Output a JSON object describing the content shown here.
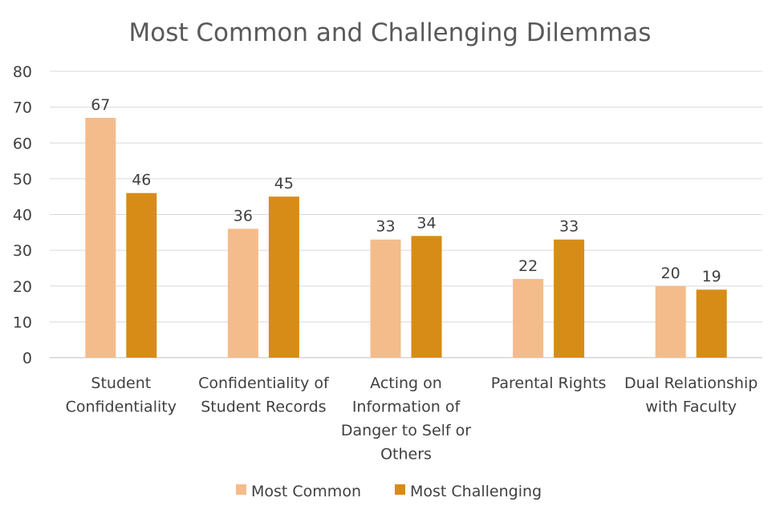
{
  "chart_data": {
    "type": "bar",
    "title": "Most Common and Challenging Dilemmas",
    "categories": [
      [
        "Student",
        "Confidentiality"
      ],
      [
        "Confidentiality of",
        "Student Records"
      ],
      [
        "Acting on",
        "Information of",
        "Danger to Self or",
        "Others"
      ],
      [
        "Parental Rights"
      ],
      [
        "Dual Relationship",
        "with Faculty"
      ]
    ],
    "series": [
      {
        "name": "Most Common",
        "color": "#f4bc8a",
        "values": [
          67,
          36,
          33,
          22,
          20
        ]
      },
      {
        "name": "Most Challenging",
        "color": "#d78c18",
        "values": [
          46,
          45,
          34,
          33,
          19
        ]
      }
    ],
    "ylim": [
      0,
      80
    ],
    "yticks": [
      0,
      10,
      20,
      30,
      40,
      50,
      60,
      70,
      80
    ],
    "grid": true,
    "legend": "bottom"
  }
}
